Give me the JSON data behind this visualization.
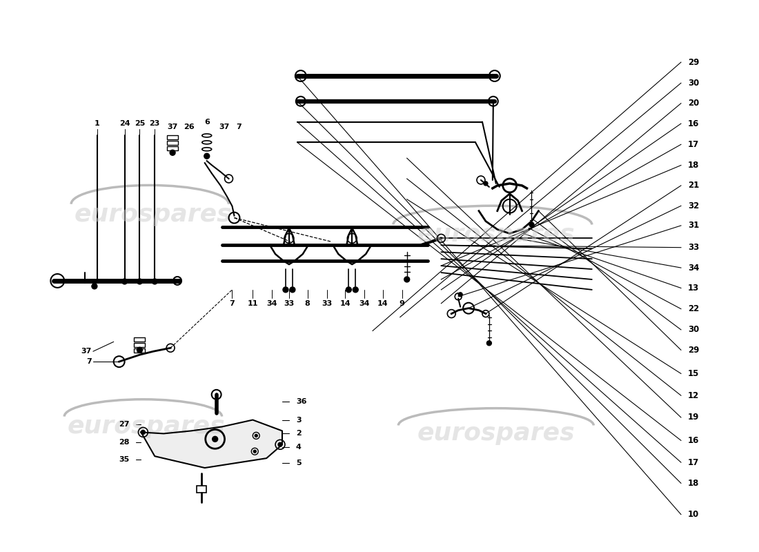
{
  "bg_color": "#ffffff",
  "line_color": "#000000",
  "watermark_color": "#cccccc",
  "watermark_text": "eurospares",
  "fig_width": 11.0,
  "fig_height": 8.0,
  "dpi": 100,
  "right_side_labels": [
    [
      "10",
      0.935
    ],
    [
      "18",
      0.878
    ],
    [
      "17",
      0.84
    ],
    [
      "16",
      0.8
    ],
    [
      "19",
      0.758
    ],
    [
      "12",
      0.718
    ],
    [
      "15",
      0.678
    ],
    [
      "29",
      0.635
    ],
    [
      "30",
      0.598
    ],
    [
      "22",
      0.56
    ],
    [
      "13",
      0.522
    ],
    [
      "34",
      0.485
    ],
    [
      "33",
      0.448
    ],
    [
      "31",
      0.408
    ],
    [
      "32",
      0.372
    ],
    [
      "21",
      0.335
    ],
    [
      "18",
      0.298
    ],
    [
      "17",
      0.26
    ],
    [
      "16",
      0.222
    ],
    [
      "20",
      0.185
    ],
    [
      "30",
      0.148
    ],
    [
      "29",
      0.11
    ]
  ]
}
